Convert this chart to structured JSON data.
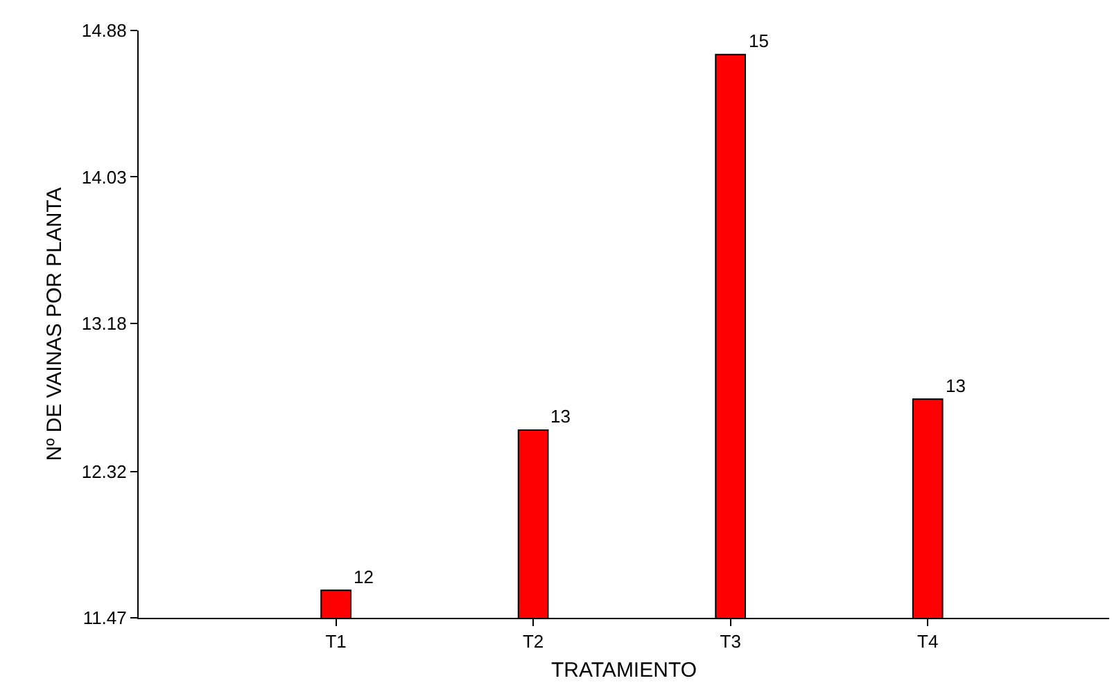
{
  "chart_data": {
    "type": "bar",
    "xlabel": "TRATAMIENTO",
    "ylabel": "Nº DE VAINAS POR PLANTA",
    "categories": [
      "T1",
      "T2",
      "T3",
      "T4"
    ],
    "values": [
      11.63,
      12.56,
      14.74,
      12.74
    ],
    "value_labels": [
      "12",
      "13",
      "15",
      "13"
    ],
    "color": "#ff0000",
    "ylim": [
      11.47,
      14.88
    ],
    "yticks": [
      11.47,
      12.32,
      13.18,
      14.03,
      14.88
    ],
    "grid": false,
    "legend": false
  }
}
